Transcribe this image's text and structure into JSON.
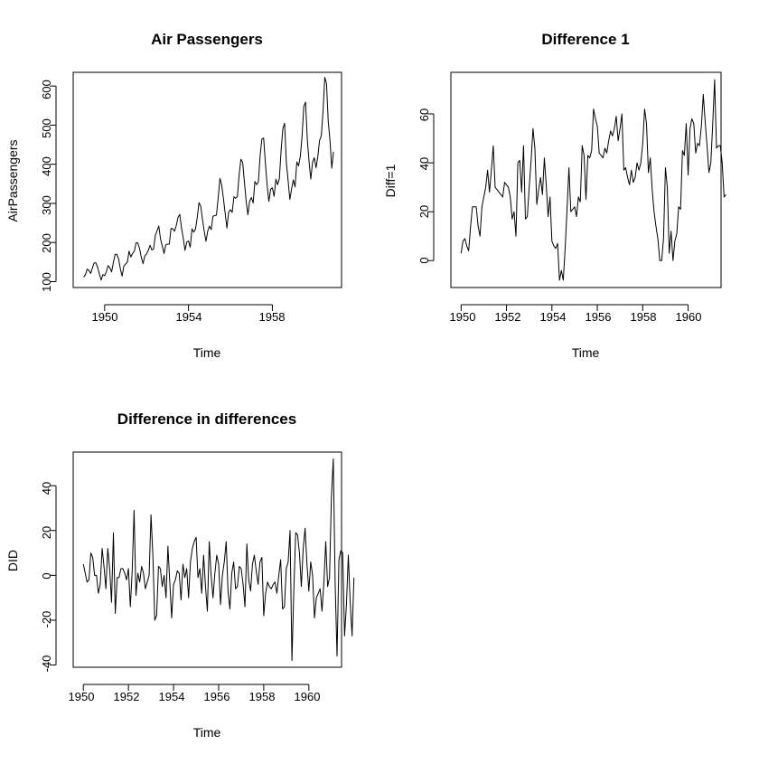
{
  "panels": [
    {
      "title": "Air Passengers",
      "xlabel": "Time",
      "ylabel": "AirPassengers",
      "xticks": [
        "1950",
        "1954",
        "1958"
      ],
      "yticks": [
        "100",
        "200",
        "300",
        "400",
        "500",
        "600"
      ]
    },
    {
      "title": "Difference 1",
      "xlabel": "Time",
      "ylabel": "Diff=1",
      "xticks": [
        "1950",
        "1952",
        "1954",
        "1956",
        "1958",
        "1960"
      ],
      "yticks": [
        "0",
        "20",
        "40",
        "60"
      ]
    },
    {
      "title": "Difference in differences",
      "xlabel": "Time",
      "ylabel": "DID",
      "xticks": [
        "1950",
        "1952",
        "1954",
        "1956",
        "1958",
        "1960"
      ],
      "yticks": [
        "-40",
        "-20",
        "0",
        "20",
        "40"
      ]
    }
  ],
  "chart_data": [
    {
      "type": "line",
      "title": "Air Passengers",
      "xlabel": "Time",
      "ylabel": "AirPassengers",
      "x_start": 1949.0,
      "x_step": 0.0833333,
      "xlim": [
        1948.5,
        1961.3
      ],
      "ylim": [
        85,
        635
      ],
      "xtick_values": [
        1950,
        1954,
        1958
      ],
      "ytick_values": [
        100,
        200,
        300,
        400,
        500,
        600
      ],
      "values": [
        112,
        118,
        132,
        129,
        121,
        135,
        148,
        148,
        136,
        119,
        104,
        118,
        115,
        126,
        141,
        135,
        125,
        149,
        170,
        170,
        158,
        133,
        114,
        140,
        145,
        150,
        178,
        163,
        172,
        178,
        199,
        199,
        184,
        162,
        146,
        166,
        171,
        180,
        193,
        181,
        183,
        218,
        230,
        242,
        209,
        191,
        172,
        194,
        196,
        196,
        236,
        235,
        229,
        243,
        264,
        272,
        237,
        211,
        180,
        201,
        204,
        188,
        235,
        227,
        234,
        264,
        302,
        293,
        259,
        229,
        203,
        229,
        242,
        233,
        267,
        269,
        270,
        315,
        364,
        347,
        312,
        274,
        237,
        278,
        284,
        277,
        317,
        313,
        318,
        374,
        413,
        405,
        355,
        306,
        271,
        306,
        315,
        301,
        356,
        348,
        355,
        422,
        465,
        467,
        404,
        347,
        305,
        336,
        340,
        318,
        362,
        348,
        363,
        435,
        491,
        505,
        404,
        359,
        310,
        337,
        360,
        342,
        406,
        396,
        420,
        472,
        548,
        559,
        463,
        407,
        362,
        405,
        417,
        391,
        419,
        461,
        472,
        535,
        622,
        606,
        508,
        461,
        390,
        432
      ]
    },
    {
      "type": "line",
      "title": "Difference 1",
      "xlabel": "Time",
      "ylabel": "Diff=1",
      "x_start": 1950.0,
      "x_step": 0.0833333,
      "xlim": [
        1949.55,
        1961.45
      ],
      "ylim": [
        -11,
        77
      ],
      "xtick_values": [
        1950,
        1952,
        1954,
        1956,
        1958,
        1960
      ],
      "ytick_values": [
        0,
        20,
        40,
        60
      ],
      "values": [
        3,
        8,
        9,
        6,
        4,
        14,
        22,
        22,
        22,
        14,
        10,
        22,
        26,
        30,
        37,
        28,
        37,
        47,
        30,
        29,
        28,
        27,
        26,
        32,
        31,
        30,
        26,
        17,
        20,
        10,
        40,
        41,
        28,
        47,
        17,
        18,
        30,
        41,
        54,
        46,
        23,
        29,
        34,
        27,
        42,
        31,
        18,
        26,
        8,
        6,
        5,
        7,
        -8,
        -4,
        -8,
        5,
        21,
        38,
        20,
        21,
        22,
        18,
        26,
        24,
        47,
        43,
        25,
        43,
        42,
        45,
        62,
        58,
        55,
        44,
        43,
        42,
        46,
        44,
        49,
        53,
        51,
        54,
        59,
        49,
        54,
        60,
        37,
        38,
        34,
        31,
        37,
        32,
        34,
        40,
        37,
        40,
        48,
        62,
        56,
        36,
        42,
        29,
        20,
        14,
        9,
        0,
        0,
        9,
        38,
        30,
        3,
        12,
        0,
        8,
        11,
        22,
        21,
        45,
        43,
        56,
        35,
        54,
        58,
        56,
        44,
        48,
        47,
        55,
        68,
        57,
        47,
        36,
        40,
        56,
        74,
        46,
        47,
        47,
        40,
        26,
        27
      ]
    },
    {
      "type": "line",
      "title": "Difference in differences",
      "xlabel": "Time",
      "ylabel": "DID",
      "x_start": 1950.0,
      "x_step": 0.0833333,
      "xlim": [
        1949.55,
        1961.45
      ],
      "ylim": [
        -41,
        55
      ],
      "xtick_values": [
        1950,
        1952,
        1954,
        1956,
        1958,
        1960
      ],
      "ytick_values": [
        -40,
        -20,
        0,
        20,
        40
      ],
      "values": [
        5,
        1,
        -3,
        -2,
        10,
        8,
        0,
        0,
        -8,
        -4,
        12,
        4,
        -6,
        12,
        3,
        -12,
        19,
        -17,
        -1,
        -1,
        3,
        3,
        1,
        -2,
        3,
        -14,
        2,
        29,
        -9,
        1,
        -3,
        4,
        1,
        -6,
        -3,
        0,
        27,
        9,
        -20,
        -18,
        4,
        3,
        -5,
        0,
        -10,
        13,
        -3,
        -19,
        -4,
        -2,
        2,
        1,
        -11,
        5,
        -1,
        3,
        -10,
        6,
        12,
        15,
        17,
        -1,
        3,
        -8,
        9,
        -5,
        -16,
        15,
        0,
        -10,
        1,
        9,
        5,
        -13,
        0,
        6,
        15,
        -7,
        -15,
        1,
        6,
        -6,
        -5,
        4,
        3,
        -4,
        -14,
        14,
        -2,
        -7,
        5,
        9,
        2,
        -4,
        6,
        8,
        -18,
        -8,
        -3,
        -5,
        -6,
        -4,
        -3,
        -8,
        0,
        7,
        -15,
        -14,
        3,
        6,
        20,
        -38,
        -7,
        19,
        18,
        10,
        -5,
        12,
        21,
        5,
        -7,
        6,
        0,
        -19,
        -10,
        -8,
        -6,
        -16,
        -3,
        15,
        -5,
        -1,
        35,
        52,
        -4,
        -36,
        7,
        11,
        10,
        -27,
        -13,
        9,
        -12,
        -27,
        -1
      ]
    }
  ]
}
